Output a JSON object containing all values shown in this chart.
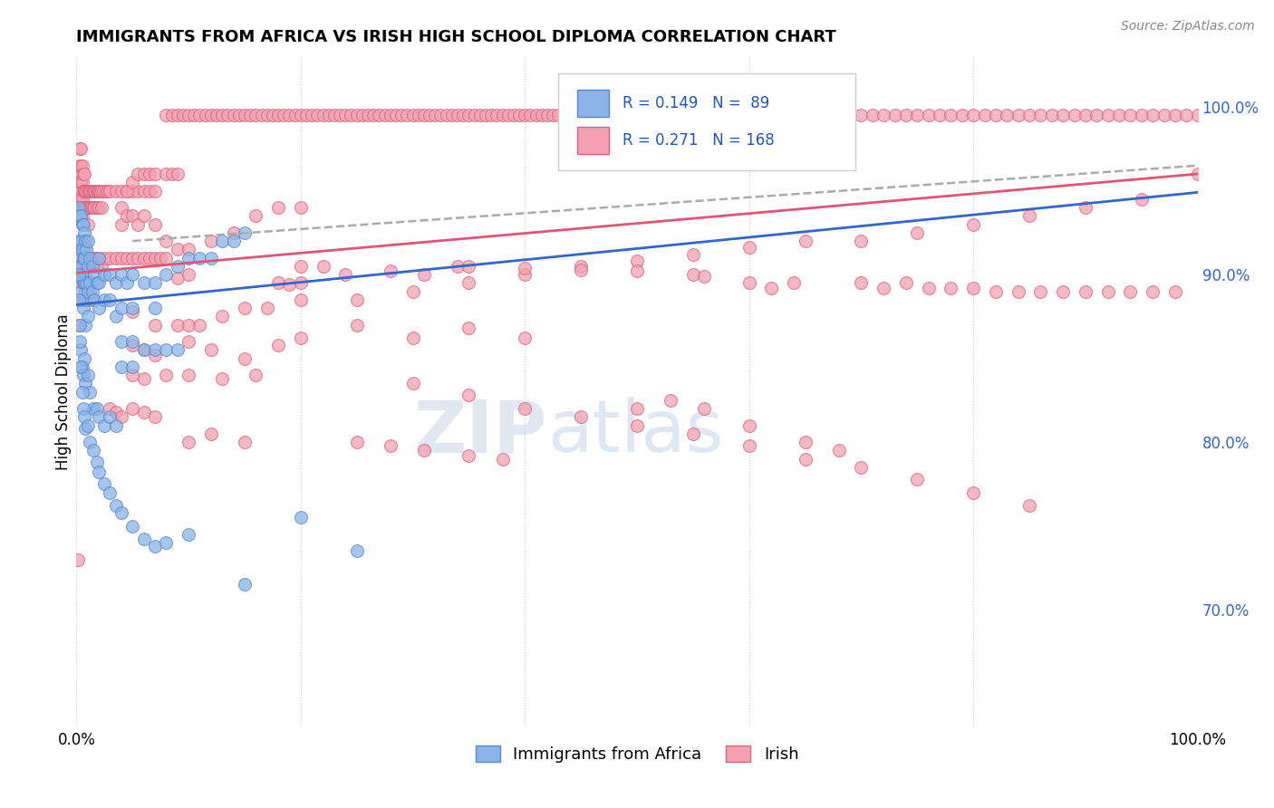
{
  "title": "IMMIGRANTS FROM AFRICA VS IRISH HIGH SCHOOL DIPLOMA CORRELATION CHART",
  "source": "Source: ZipAtlas.com",
  "ylabel": "High School Diploma",
  "blue_color": "#8ab4e8",
  "pink_color": "#f4a0b0",
  "blue_edge_color": "#5588cc",
  "pink_edge_color": "#e06080",
  "blue_line_color": "#3366cc",
  "pink_line_color": "#e05575",
  "dashed_line_color": "#aaaaaa",
  "watermark_zip": "ZIP",
  "watermark_atlas": "atlas",
  "blue_scatter": [
    [
      0.001,
      0.935
    ],
    [
      0.002,
      0.94
    ],
    [
      0.002,
      0.92
    ],
    [
      0.002,
      0.905
    ],
    [
      0.003,
      0.935
    ],
    [
      0.003,
      0.915
    ],
    [
      0.003,
      0.9
    ],
    [
      0.004,
      0.935
    ],
    [
      0.004,
      0.92
    ],
    [
      0.004,
      0.905
    ],
    [
      0.004,
      0.89
    ],
    [
      0.005,
      0.93
    ],
    [
      0.005,
      0.915
    ],
    [
      0.005,
      0.9
    ],
    [
      0.006,
      0.93
    ],
    [
      0.006,
      0.91
    ],
    [
      0.006,
      0.895
    ],
    [
      0.006,
      0.88
    ],
    [
      0.007,
      0.925
    ],
    [
      0.007,
      0.91
    ],
    [
      0.007,
      0.895
    ],
    [
      0.008,
      0.92
    ],
    [
      0.008,
      0.9
    ],
    [
      0.008,
      0.885
    ],
    [
      0.008,
      0.87
    ],
    [
      0.009,
      0.915
    ],
    [
      0.009,
      0.895
    ],
    [
      0.01,
      0.92
    ],
    [
      0.01,
      0.905
    ],
    [
      0.01,
      0.89
    ],
    [
      0.01,
      0.875
    ],
    [
      0.012,
      0.91
    ],
    [
      0.012,
      0.895
    ],
    [
      0.014,
      0.905
    ],
    [
      0.014,
      0.89
    ],
    [
      0.016,
      0.9
    ],
    [
      0.016,
      0.885
    ],
    [
      0.018,
      0.895
    ],
    [
      0.02,
      0.91
    ],
    [
      0.02,
      0.895
    ],
    [
      0.02,
      0.88
    ],
    [
      0.025,
      0.9
    ],
    [
      0.025,
      0.885
    ],
    [
      0.03,
      0.9
    ],
    [
      0.03,
      0.885
    ],
    [
      0.035,
      0.895
    ],
    [
      0.035,
      0.875
    ],
    [
      0.04,
      0.9
    ],
    [
      0.04,
      0.88
    ],
    [
      0.045,
      0.895
    ],
    [
      0.05,
      0.9
    ],
    [
      0.05,
      0.88
    ],
    [
      0.06,
      0.895
    ],
    [
      0.07,
      0.895
    ],
    [
      0.07,
      0.88
    ],
    [
      0.08,
      0.9
    ],
    [
      0.09,
      0.905
    ],
    [
      0.1,
      0.91
    ],
    [
      0.11,
      0.91
    ],
    [
      0.12,
      0.91
    ],
    [
      0.13,
      0.92
    ],
    [
      0.14,
      0.92
    ],
    [
      0.15,
      0.925
    ],
    [
      0.003,
      0.87
    ],
    [
      0.004,
      0.855
    ],
    [
      0.005,
      0.845
    ],
    [
      0.006,
      0.84
    ],
    [
      0.007,
      0.85
    ],
    [
      0.008,
      0.835
    ],
    [
      0.01,
      0.84
    ],
    [
      0.012,
      0.83
    ],
    [
      0.015,
      0.82
    ],
    [
      0.018,
      0.82
    ],
    [
      0.02,
      0.815
    ],
    [
      0.025,
      0.81
    ],
    [
      0.03,
      0.815
    ],
    [
      0.035,
      0.81
    ],
    [
      0.002,
      0.9
    ],
    [
      0.002,
      0.885
    ],
    [
      0.003,
      0.86
    ],
    [
      0.004,
      0.845
    ],
    [
      0.005,
      0.83
    ],
    [
      0.006,
      0.82
    ],
    [
      0.007,
      0.815
    ],
    [
      0.008,
      0.808
    ],
    [
      0.01,
      0.81
    ],
    [
      0.012,
      0.8
    ],
    [
      0.015,
      0.795
    ],
    [
      0.018,
      0.788
    ],
    [
      0.02,
      0.782
    ],
    [
      0.025,
      0.775
    ],
    [
      0.03,
      0.77
    ],
    [
      0.035,
      0.762
    ],
    [
      0.04,
      0.758
    ],
    [
      0.05,
      0.75
    ],
    [
      0.06,
      0.742
    ],
    [
      0.07,
      0.738
    ],
    [
      0.08,
      0.74
    ],
    [
      0.1,
      0.745
    ],
    [
      0.04,
      0.86
    ],
    [
      0.04,
      0.845
    ],
    [
      0.05,
      0.86
    ],
    [
      0.05,
      0.845
    ],
    [
      0.06,
      0.855
    ],
    [
      0.07,
      0.855
    ],
    [
      0.08,
      0.855
    ],
    [
      0.09,
      0.855
    ],
    [
      0.15,
      0.715
    ],
    [
      0.2,
      0.755
    ],
    [
      0.25,
      0.735
    ]
  ],
  "pink_scatter": [
    [
      0.001,
      0.73
    ],
    [
      0.002,
      0.94
    ],
    [
      0.002,
      0.95
    ],
    [
      0.002,
      0.96
    ],
    [
      0.003,
      0.945
    ],
    [
      0.003,
      0.955
    ],
    [
      0.003,
      0.965
    ],
    [
      0.003,
      0.975
    ],
    [
      0.004,
      0.945
    ],
    [
      0.004,
      0.955
    ],
    [
      0.004,
      0.965
    ],
    [
      0.004,
      0.975
    ],
    [
      0.005,
      0.945
    ],
    [
      0.005,
      0.955
    ],
    [
      0.005,
      0.965
    ],
    [
      0.005,
      0.935
    ],
    [
      0.006,
      0.95
    ],
    [
      0.006,
      0.96
    ],
    [
      0.006,
      0.94
    ],
    [
      0.007,
      0.95
    ],
    [
      0.007,
      0.96
    ],
    [
      0.007,
      0.94
    ],
    [
      0.008,
      0.95
    ],
    [
      0.008,
      0.94
    ],
    [
      0.009,
      0.95
    ],
    [
      0.009,
      0.94
    ],
    [
      0.01,
      0.95
    ],
    [
      0.01,
      0.94
    ],
    [
      0.01,
      0.93
    ],
    [
      0.011,
      0.95
    ],
    [
      0.011,
      0.94
    ],
    [
      0.012,
      0.95
    ],
    [
      0.012,
      0.94
    ],
    [
      0.013,
      0.95
    ],
    [
      0.013,
      0.94
    ],
    [
      0.014,
      0.95
    ],
    [
      0.014,
      0.94
    ],
    [
      0.015,
      0.95
    ],
    [
      0.015,
      0.94
    ],
    [
      0.016,
      0.95
    ],
    [
      0.016,
      0.94
    ],
    [
      0.017,
      0.95
    ],
    [
      0.018,
      0.95
    ],
    [
      0.018,
      0.94
    ],
    [
      0.019,
      0.95
    ],
    [
      0.02,
      0.95
    ],
    [
      0.02,
      0.94
    ],
    [
      0.021,
      0.95
    ],
    [
      0.022,
      0.95
    ],
    [
      0.022,
      0.94
    ],
    [
      0.024,
      0.95
    ],
    [
      0.026,
      0.95
    ],
    [
      0.028,
      0.95
    ],
    [
      0.03,
      0.95
    ],
    [
      0.035,
      0.95
    ],
    [
      0.04,
      0.95
    ],
    [
      0.04,
      0.94
    ],
    [
      0.045,
      0.95
    ],
    [
      0.05,
      0.95
    ],
    [
      0.055,
      0.95
    ],
    [
      0.06,
      0.95
    ],
    [
      0.065,
      0.95
    ],
    [
      0.07,
      0.95
    ],
    [
      0.08,
      0.995
    ],
    [
      0.085,
      0.995
    ],
    [
      0.09,
      0.995
    ],
    [
      0.095,
      0.995
    ],
    [
      0.1,
      0.995
    ],
    [
      0.105,
      0.995
    ],
    [
      0.11,
      0.995
    ],
    [
      0.115,
      0.995
    ],
    [
      0.12,
      0.995
    ],
    [
      0.125,
      0.995
    ],
    [
      0.13,
      0.995
    ],
    [
      0.135,
      0.995
    ],
    [
      0.14,
      0.995
    ],
    [
      0.145,
      0.995
    ],
    [
      0.15,
      0.995
    ],
    [
      0.155,
      0.995
    ],
    [
      0.16,
      0.995
    ],
    [
      0.165,
      0.995
    ],
    [
      0.17,
      0.995
    ],
    [
      0.175,
      0.995
    ],
    [
      0.18,
      0.995
    ],
    [
      0.185,
      0.995
    ],
    [
      0.19,
      0.995
    ],
    [
      0.195,
      0.995
    ],
    [
      0.2,
      0.995
    ],
    [
      0.205,
      0.995
    ],
    [
      0.21,
      0.995
    ],
    [
      0.215,
      0.995
    ],
    [
      0.22,
      0.995
    ],
    [
      0.225,
      0.995
    ],
    [
      0.23,
      0.995
    ],
    [
      0.235,
      0.995
    ],
    [
      0.24,
      0.995
    ],
    [
      0.245,
      0.995
    ],
    [
      0.25,
      0.995
    ],
    [
      0.255,
      0.995
    ],
    [
      0.26,
      0.995
    ],
    [
      0.265,
      0.995
    ],
    [
      0.27,
      0.995
    ],
    [
      0.275,
      0.995
    ],
    [
      0.28,
      0.995
    ],
    [
      0.285,
      0.995
    ],
    [
      0.29,
      0.995
    ],
    [
      0.295,
      0.995
    ],
    [
      0.3,
      0.995
    ],
    [
      0.305,
      0.995
    ],
    [
      0.31,
      0.995
    ],
    [
      0.315,
      0.995
    ],
    [
      0.32,
      0.995
    ],
    [
      0.325,
      0.995
    ],
    [
      0.33,
      0.995
    ],
    [
      0.335,
      0.995
    ],
    [
      0.34,
      0.995
    ],
    [
      0.345,
      0.995
    ],
    [
      0.35,
      0.995
    ],
    [
      0.355,
      0.995
    ],
    [
      0.36,
      0.995
    ],
    [
      0.365,
      0.995
    ],
    [
      0.37,
      0.995
    ],
    [
      0.375,
      0.995
    ],
    [
      0.38,
      0.995
    ],
    [
      0.385,
      0.995
    ],
    [
      0.39,
      0.995
    ],
    [
      0.395,
      0.995
    ],
    [
      0.4,
      0.995
    ],
    [
      0.405,
      0.995
    ],
    [
      0.41,
      0.995
    ],
    [
      0.415,
      0.995
    ],
    [
      0.42,
      0.995
    ],
    [
      0.425,
      0.995
    ],
    [
      0.43,
      0.995
    ],
    [
      0.435,
      0.995
    ],
    [
      0.44,
      0.995
    ],
    [
      0.445,
      0.995
    ],
    [
      0.45,
      0.995
    ],
    [
      0.455,
      0.995
    ],
    [
      0.46,
      0.995
    ],
    [
      0.465,
      0.995
    ],
    [
      0.47,
      0.995
    ],
    [
      0.475,
      0.995
    ],
    [
      0.48,
      0.995
    ],
    [
      0.485,
      0.995
    ],
    [
      0.49,
      0.995
    ],
    [
      0.495,
      0.995
    ],
    [
      0.5,
      0.995
    ],
    [
      0.51,
      0.995
    ],
    [
      0.52,
      0.995
    ],
    [
      0.53,
      0.995
    ],
    [
      0.54,
      0.995
    ],
    [
      0.55,
      0.995
    ],
    [
      0.56,
      0.995
    ],
    [
      0.57,
      0.995
    ],
    [
      0.58,
      0.995
    ],
    [
      0.59,
      0.995
    ],
    [
      0.6,
      0.995
    ],
    [
      0.61,
      0.995
    ],
    [
      0.62,
      0.995
    ],
    [
      0.63,
      0.995
    ],
    [
      0.64,
      0.995
    ],
    [
      0.65,
      0.995
    ],
    [
      0.66,
      0.995
    ],
    [
      0.67,
      0.995
    ],
    [
      0.68,
      0.995
    ],
    [
      0.69,
      0.995
    ],
    [
      0.7,
      0.995
    ],
    [
      0.71,
      0.995
    ],
    [
      0.72,
      0.995
    ],
    [
      0.73,
      0.995
    ],
    [
      0.74,
      0.995
    ],
    [
      0.75,
      0.995
    ],
    [
      0.76,
      0.995
    ],
    [
      0.77,
      0.995
    ],
    [
      0.78,
      0.995
    ],
    [
      0.79,
      0.995
    ],
    [
      0.8,
      0.995
    ],
    [
      0.81,
      0.995
    ],
    [
      0.82,
      0.995
    ],
    [
      0.83,
      0.995
    ],
    [
      0.84,
      0.995
    ],
    [
      0.85,
      0.995
    ],
    [
      0.86,
      0.995
    ],
    [
      0.87,
      0.995
    ],
    [
      0.88,
      0.995
    ],
    [
      0.89,
      0.995
    ],
    [
      0.9,
      0.995
    ],
    [
      0.91,
      0.995
    ],
    [
      0.92,
      0.995
    ],
    [
      0.93,
      0.995
    ],
    [
      0.94,
      0.995
    ],
    [
      0.95,
      0.995
    ],
    [
      0.96,
      0.995
    ],
    [
      0.97,
      0.995
    ],
    [
      0.98,
      0.995
    ],
    [
      0.99,
      0.995
    ],
    [
      1.0,
      0.995
    ],
    [
      0.003,
      0.92
    ],
    [
      0.004,
      0.91
    ],
    [
      0.004,
      0.9
    ],
    [
      0.005,
      0.92
    ],
    [
      0.006,
      0.915
    ],
    [
      0.006,
      0.905
    ],
    [
      0.007,
      0.91
    ],
    [
      0.008,
      0.91
    ],
    [
      0.009,
      0.905
    ],
    [
      0.01,
      0.91
    ],
    [
      0.011,
      0.905
    ],
    [
      0.012,
      0.91
    ],
    [
      0.013,
      0.905
    ],
    [
      0.014,
      0.91
    ],
    [
      0.015,
      0.91
    ],
    [
      0.016,
      0.905
    ],
    [
      0.017,
      0.91
    ],
    [
      0.018,
      0.905
    ],
    [
      0.02,
      0.91
    ],
    [
      0.022,
      0.905
    ],
    [
      0.025,
      0.91
    ],
    [
      0.03,
      0.91
    ],
    [
      0.035,
      0.91
    ],
    [
      0.04,
      0.91
    ],
    [
      0.045,
      0.91
    ],
    [
      0.05,
      0.91
    ],
    [
      0.055,
      0.91
    ],
    [
      0.06,
      0.91
    ],
    [
      0.065,
      0.91
    ],
    [
      0.07,
      0.91
    ],
    [
      0.075,
      0.91
    ],
    [
      0.08,
      0.91
    ],
    [
      0.005,
      0.895
    ],
    [
      0.006,
      0.885
    ],
    [
      0.008,
      0.89
    ],
    [
      0.01,
      0.885
    ],
    [
      0.012,
      0.89
    ],
    [
      0.015,
      0.885
    ],
    [
      0.002,
      0.87
    ],
    [
      0.003,
      0.895
    ],
    [
      0.004,
      0.885
    ],
    [
      0.045,
      0.95
    ],
    [
      0.05,
      0.955
    ],
    [
      0.055,
      0.96
    ],
    [
      0.06,
      0.96
    ],
    [
      0.065,
      0.96
    ],
    [
      0.07,
      0.96
    ],
    [
      0.08,
      0.96
    ],
    [
      0.085,
      0.96
    ],
    [
      0.09,
      0.96
    ],
    [
      0.04,
      0.93
    ],
    [
      0.045,
      0.935
    ],
    [
      0.05,
      0.935
    ],
    [
      0.055,
      0.93
    ],
    [
      0.06,
      0.935
    ],
    [
      0.07,
      0.93
    ],
    [
      0.08,
      0.92
    ],
    [
      0.09,
      0.915
    ],
    [
      0.1,
      0.915
    ],
    [
      0.12,
      0.92
    ],
    [
      0.14,
      0.925
    ],
    [
      0.16,
      0.935
    ],
    [
      0.18,
      0.94
    ],
    [
      0.2,
      0.94
    ],
    [
      0.05,
      0.878
    ],
    [
      0.07,
      0.87
    ],
    [
      0.09,
      0.87
    ],
    [
      0.1,
      0.87
    ],
    [
      0.11,
      0.87
    ],
    [
      0.13,
      0.875
    ],
    [
      0.15,
      0.88
    ],
    [
      0.17,
      0.88
    ],
    [
      0.2,
      0.885
    ],
    [
      0.25,
      0.885
    ],
    [
      0.3,
      0.89
    ],
    [
      0.35,
      0.895
    ],
    [
      0.4,
      0.9
    ],
    [
      0.45,
      0.905
    ],
    [
      0.5,
      0.908
    ],
    [
      0.55,
      0.912
    ],
    [
      0.6,
      0.916
    ],
    [
      0.65,
      0.92
    ],
    [
      0.7,
      0.92
    ],
    [
      0.75,
      0.925
    ],
    [
      0.8,
      0.93
    ],
    [
      0.85,
      0.935
    ],
    [
      0.9,
      0.94
    ],
    [
      0.95,
      0.945
    ],
    [
      1.0,
      0.96
    ],
    [
      0.1,
      0.86
    ],
    [
      0.12,
      0.855
    ],
    [
      0.15,
      0.85
    ],
    [
      0.18,
      0.858
    ],
    [
      0.2,
      0.862
    ],
    [
      0.25,
      0.87
    ],
    [
      0.3,
      0.862
    ],
    [
      0.35,
      0.868
    ],
    [
      0.4,
      0.862
    ],
    [
      0.3,
      0.835
    ],
    [
      0.35,
      0.828
    ],
    [
      0.4,
      0.82
    ],
    [
      0.45,
      0.815
    ],
    [
      0.5,
      0.81
    ],
    [
      0.55,
      0.805
    ],
    [
      0.6,
      0.798
    ],
    [
      0.65,
      0.79
    ],
    [
      0.7,
      0.785
    ],
    [
      0.75,
      0.778
    ],
    [
      0.8,
      0.77
    ],
    [
      0.85,
      0.762
    ],
    [
      0.25,
      0.8
    ],
    [
      0.28,
      0.798
    ],
    [
      0.31,
      0.795
    ],
    [
      0.35,
      0.792
    ],
    [
      0.38,
      0.79
    ],
    [
      0.5,
      0.82
    ],
    [
      0.53,
      0.825
    ],
    [
      0.56,
      0.82
    ],
    [
      0.6,
      0.81
    ],
    [
      0.65,
      0.8
    ],
    [
      0.68,
      0.795
    ],
    [
      0.1,
      0.8
    ],
    [
      0.12,
      0.805
    ],
    [
      0.15,
      0.8
    ],
    [
      0.09,
      0.898
    ],
    [
      0.1,
      0.9
    ],
    [
      0.2,
      0.905
    ],
    [
      0.22,
      0.905
    ],
    [
      0.24,
      0.9
    ],
    [
      0.28,
      0.902
    ],
    [
      0.31,
      0.9
    ],
    [
      0.34,
      0.905
    ],
    [
      0.6,
      0.895
    ],
    [
      0.62,
      0.892
    ],
    [
      0.64,
      0.895
    ],
    [
      0.7,
      0.895
    ],
    [
      0.72,
      0.892
    ],
    [
      0.74,
      0.895
    ],
    [
      0.76,
      0.892
    ],
    [
      0.78,
      0.892
    ],
    [
      0.8,
      0.892
    ],
    [
      0.82,
      0.89
    ],
    [
      0.84,
      0.89
    ],
    [
      0.86,
      0.89
    ],
    [
      0.88,
      0.89
    ],
    [
      0.9,
      0.89
    ],
    [
      0.92,
      0.89
    ],
    [
      0.94,
      0.89
    ],
    [
      0.96,
      0.89
    ],
    [
      0.98,
      0.89
    ],
    [
      0.35,
      0.905
    ],
    [
      0.4,
      0.904
    ],
    [
      0.45,
      0.903
    ],
    [
      0.5,
      0.902
    ],
    [
      0.55,
      0.9
    ],
    [
      0.56,
      0.899
    ],
    [
      0.18,
      0.895
    ],
    [
      0.19,
      0.894
    ],
    [
      0.2,
      0.895
    ],
    [
      0.05,
      0.84
    ],
    [
      0.06,
      0.838
    ],
    [
      0.08,
      0.84
    ],
    [
      0.05,
      0.858
    ],
    [
      0.06,
      0.855
    ],
    [
      0.07,
      0.852
    ],
    [
      0.1,
      0.84
    ],
    [
      0.13,
      0.838
    ],
    [
      0.16,
      0.84
    ],
    [
      0.05,
      0.82
    ],
    [
      0.06,
      0.818
    ],
    [
      0.07,
      0.815
    ],
    [
      0.03,
      0.82
    ],
    [
      0.035,
      0.818
    ],
    [
      0.04,
      0.815
    ]
  ],
  "blue_regression": [
    0.0,
    0.882,
    1.0,
    0.949
  ],
  "pink_regression": [
    0.0,
    0.901,
    1.0,
    0.96
  ],
  "dashed_line": [
    0.05,
    0.92,
    1.0,
    0.965
  ],
  "xlim": [
    0.0,
    1.0
  ],
  "ylim": [
    0.63,
    1.03
  ],
  "right_ytick_vals": [
    0.7,
    0.8,
    0.9,
    1.0
  ],
  "right_ytick_labels": [
    "70.0%",
    "80.0%",
    "90.0%",
    "100.0%"
  ]
}
